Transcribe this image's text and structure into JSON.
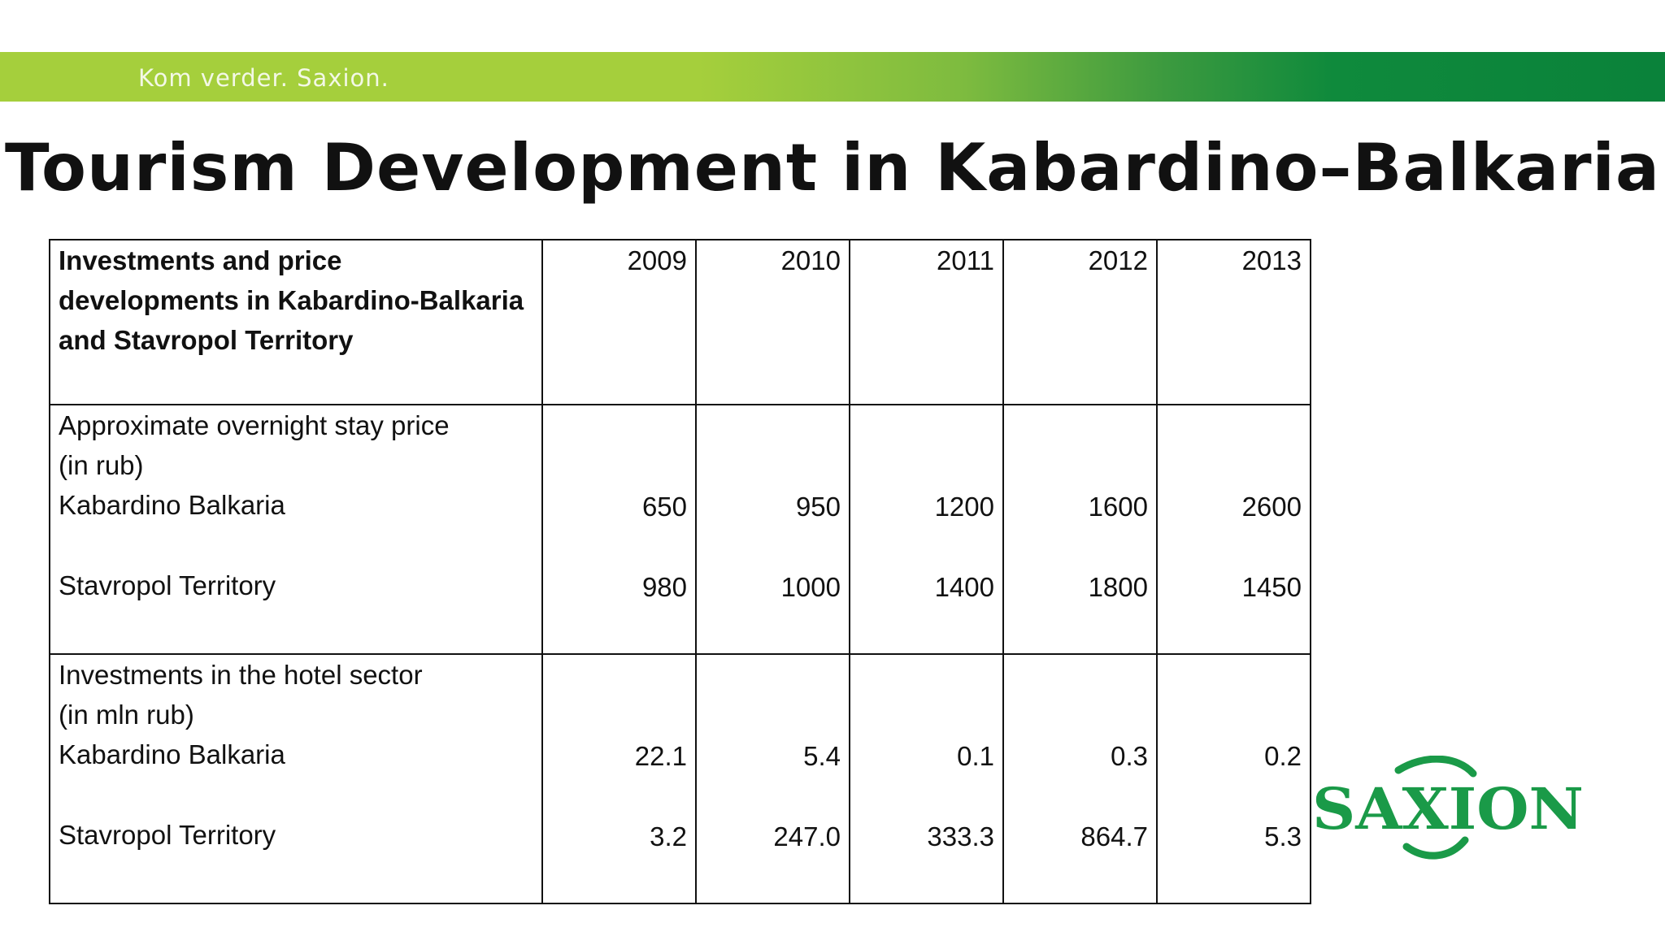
{
  "banner": {
    "tagline": "Kom verder. Saxion."
  },
  "title": "Tourism Development in Kabardino–Balkaria",
  "table": {
    "header": {
      "label_lines": [
        "Investments and price",
        "developments in Kabardino-Balkaria",
        "and Stavropol Territory"
      ],
      "years": [
        "2009",
        "2010",
        "2011",
        "2012",
        "2013"
      ]
    },
    "overnight": {
      "label_lines": [
        "Approximate overnight stay price",
        "(in rub)"
      ],
      "rows": [
        {
          "name": "Kabardino Balkaria",
          "values": [
            "650",
            "950",
            "1200",
            "1600",
            "2600"
          ]
        },
        {
          "name": "Stavropol Territory",
          "values": [
            "980",
            "1000",
            "1400",
            "1800",
            "1450"
          ]
        }
      ]
    },
    "investments": {
      "label_lines": [
        "Investments in the hotel sector",
        "(in mln rub)"
      ],
      "rows": [
        {
          "name": "Kabardino Balkaria",
          "values": [
            "22.1",
            "5.4",
            "0.1",
            "0.3",
            "0.2"
          ]
        },
        {
          "name": "Stavropol Territory",
          "values": [
            "3.2",
            "247.0",
            "333.3",
            "864.7",
            "5.3"
          ]
        }
      ]
    }
  },
  "logo": {
    "text": "SAXION",
    "color": "#1a9a48"
  }
}
